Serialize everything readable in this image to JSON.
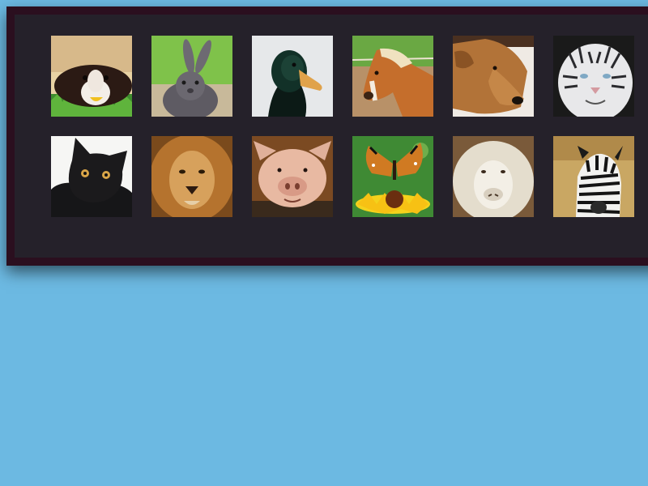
{
  "tiles": [
    {
      "animal": "guinea-pig"
    },
    {
      "animal": "rabbit"
    },
    {
      "animal": "duck"
    },
    {
      "animal": "horse"
    },
    {
      "animal": "dog"
    },
    {
      "animal": "white-tiger"
    },
    {
      "animal": "black-cat"
    },
    {
      "animal": "lion"
    },
    {
      "animal": "pig"
    },
    {
      "animal": "butterfly"
    },
    {
      "animal": "sheep"
    },
    {
      "animal": "zebra"
    }
  ],
  "colors": {
    "background": "#6cb9e2",
    "panel_border": "#2b0f1f",
    "panel_fill": "#25212a"
  }
}
